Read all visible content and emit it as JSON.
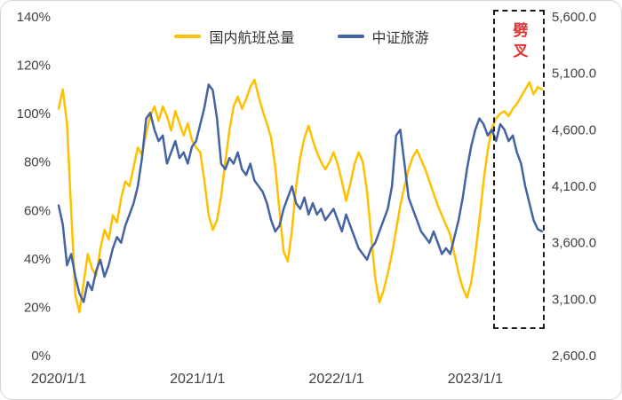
{
  "chart_data": {
    "type": "line",
    "title": "",
    "x_unit": "year_fraction",
    "x_tick_years": [
      2020,
      2021,
      2022,
      2023
    ],
    "x_tick_labels": [
      "2020/1/1",
      "2021/1/1",
      "2022/1/1",
      "2023/1/1"
    ],
    "left_axis": {
      "lim": [
        0,
        140
      ],
      "values": [
        0,
        20,
        40,
        60,
        80,
        100,
        120,
        140
      ],
      "ticks": [
        "0%",
        "20%",
        "40%",
        "60%",
        "80%",
        "100%",
        "120%",
        "140%"
      ]
    },
    "right_axis": {
      "lim": [
        2600,
        5600
      ],
      "values": [
        2600,
        3100,
        3600,
        4100,
        4600,
        5100,
        5600
      ],
      "ticks": [
        "2,600.0",
        "3,100.0",
        "3,600.0",
        "4,100.0",
        "4,600.0",
        "5,100.0",
        "5,600.0"
      ]
    },
    "legend_position": "top-center",
    "grid": false,
    "series": [
      {
        "name": "国内航班总量",
        "axis": "left",
        "color": "#FFC000",
        "x_start": 2020.0,
        "x_step": 0.03,
        "values": [
          102,
          110,
          96,
          60,
          25,
          18,
          30,
          42,
          36,
          33,
          44,
          52,
          48,
          58,
          55,
          65,
          72,
          70,
          78,
          86,
          83,
          92,
          99,
          103,
          97,
          103,
          99,
          93,
          101,
          96,
          91,
          96,
          89,
          86,
          84,
          72,
          58,
          52,
          56,
          66,
          80,
          93,
          103,
          107,
          102,
          106,
          111,
          114,
          107,
          101,
          96,
          90,
          78,
          60,
          43,
          39,
          52,
          70,
          82,
          90,
          95,
          89,
          84,
          80,
          77,
          80,
          84,
          79,
          72,
          64,
          71,
          79,
          84,
          80,
          68,
          50,
          32,
          22,
          27,
          34,
          42,
          52,
          62,
          70,
          77,
          82,
          85,
          81,
          77,
          72,
          67,
          62,
          58,
          54,
          50,
          42,
          34,
          28,
          24,
          30,
          42,
          56,
          72,
          85,
          94,
          98,
          100,
          101,
          99,
          102,
          104,
          107,
          110,
          113,
          108,
          111,
          110
        ]
      },
      {
        "name": "中证旅游",
        "axis": "right",
        "color": "#4463A5",
        "x_start": 2020.0,
        "x_step": 0.03,
        "values": [
          3930,
          3760,
          3400,
          3500,
          3300,
          3150,
          3075,
          3250,
          3180,
          3350,
          3450,
          3300,
          3400,
          3550,
          3650,
          3600,
          3750,
          3850,
          3950,
          4100,
          4350,
          4700,
          4750,
          4600,
          4500,
          4550,
          4300,
          4400,
          4500,
          4350,
          4400,
          4300,
          4450,
          4500,
          4650,
          4800,
          5000,
          4950,
          4700,
          4300,
          4250,
          4350,
          4300,
          4400,
          4250,
          4200,
          4300,
          4150,
          4100,
          4050,
          3950,
          3800,
          3700,
          3750,
          3900,
          4000,
          4100,
          3950,
          3900,
          4000,
          3850,
          3950,
          3850,
          3900,
          3800,
          3850,
          3900,
          3800,
          3700,
          3850,
          3750,
          3650,
          3550,
          3500,
          3450,
          3550,
          3600,
          3700,
          3800,
          3900,
          4100,
          4550,
          4600,
          4300,
          4000,
          3900,
          3800,
          3700,
          3650,
          3600,
          3700,
          3600,
          3500,
          3550,
          3500,
          3650,
          3800,
          4000,
          4250,
          4450,
          4600,
          4700,
          4650,
          4550,
          4600,
          4500,
          4650,
          4600,
          4500,
          4550,
          4400,
          4300,
          4100,
          3950,
          3800,
          3720,
          3700
        ]
      }
    ],
    "annotation": {
      "label": "劈叉",
      "color": "#E03131",
      "x_range": [
        2023.13,
        2023.5
      ]
    }
  }
}
